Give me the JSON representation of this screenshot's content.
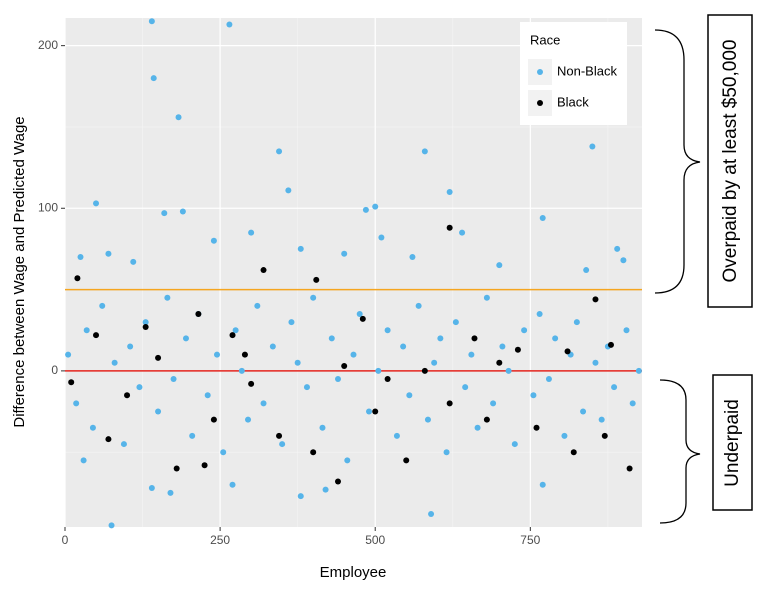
{
  "chart_data": {
    "type": "scatter",
    "x_label": "Employee",
    "y_label": "Difference between Wage and Predicted Wage",
    "xlim": [
      0,
      930
    ],
    "ylim": [
      -96,
      217
    ],
    "xticks": [
      0,
      250,
      500,
      750
    ],
    "yticks": [
      0,
      100,
      200
    ],
    "grid": true,
    "minor_grid": true,
    "legend_title": "Race",
    "legend_position": "top-right",
    "hlines": [
      {
        "value": 50,
        "color": "#f5a51f"
      },
      {
        "value": 0,
        "color": "#e3231c"
      }
    ],
    "annotations": [
      "Overpaid by at least $50,000",
      "Underpaid"
    ],
    "series": [
      {
        "name": "Non-Black",
        "color": "#56b4e9",
        "x": [
          140,
          265,
          143,
          183,
          345,
          580,
          850,
          620,
          360,
          50,
          160,
          190,
          500,
          485,
          70,
          240,
          380,
          770,
          890,
          700,
          840,
          900,
          25,
          110,
          300,
          510,
          450,
          560,
          640,
          30,
          75,
          140,
          380,
          590,
          420,
          770,
          170,
          270,
          5,
          18,
          35,
          45,
          60,
          80,
          95,
          105,
          120,
          130,
          150,
          165,
          175,
          195,
          205,
          215,
          230,
          245,
          255,
          275,
          285,
          295,
          310,
          320,
          335,
          350,
          365,
          375,
          390,
          400,
          415,
          430,
          440,
          455,
          465,
          475,
          490,
          505,
          520,
          535,
          545,
          555,
          570,
          585,
          595,
          605,
          615,
          630,
          645,
          655,
          665,
          680,
          690,
          705,
          715,
          725,
          740,
          755,
          765,
          780,
          790,
          805,
          815,
          825,
          835,
          855,
          865,
          875,
          885,
          905,
          915,
          925
        ],
        "values": [
          215,
          213,
          180,
          156,
          135,
          135,
          138,
          110,
          111,
          103,
          97,
          98,
          101,
          99,
          72,
          80,
          75,
          94,
          75,
          65,
          62,
          68,
          70,
          67,
          85,
          82,
          72,
          70,
          85,
          -55,
          -95,
          -72,
          -77,
          -88,
          -73,
          -70,
          -75,
          -70,
          10,
          -20,
          25,
          -35,
          40,
          5,
          -45,
          15,
          -10,
          30,
          -25,
          45,
          -5,
          20,
          -40,
          35,
          -15,
          10,
          -50,
          25,
          0,
          -30,
          40,
          -20,
          15,
          -45,
          30,
          5,
          -10,
          45,
          -35,
          20,
          -5,
          -55,
          10,
          35,
          -25,
          0,
          25,
          -40,
          15,
          -15,
          40,
          -30,
          5,
          20,
          -50,
          30,
          -10,
          10,
          -35,
          45,
          -20,
          15,
          0,
          -45,
          25,
          -15,
          35,
          -5,
          20,
          -40,
          10,
          30,
          -25,
          5,
          -30,
          15,
          -10,
          25,
          -20,
          0
        ]
      },
      {
        "name": "Black",
        "color": "#000000",
        "x": [
          20,
          620,
          320,
          405,
          855,
          130,
          215,
          480,
          50,
          270,
          660,
          730,
          810,
          880,
          150,
          290,
          450,
          520,
          580,
          700,
          10,
          100,
          240,
          345,
          400,
          440,
          500,
          550,
          620,
          680,
          760,
          820,
          910,
          180,
          225,
          870,
          70,
          300
        ],
        "values": [
          57,
          88,
          62,
          56,
          44,
          27,
          35,
          32,
          22,
          22,
          20,
          13,
          12,
          16,
          8,
          10,
          3,
          -5,
          0,
          5,
          -7,
          -15,
          -30,
          -40,
          -50,
          -68,
          -25,
          -55,
          -20,
          -30,
          -35,
          -50,
          -60,
          -60,
          -58,
          -40,
          -42,
          -8
        ]
      }
    ]
  }
}
